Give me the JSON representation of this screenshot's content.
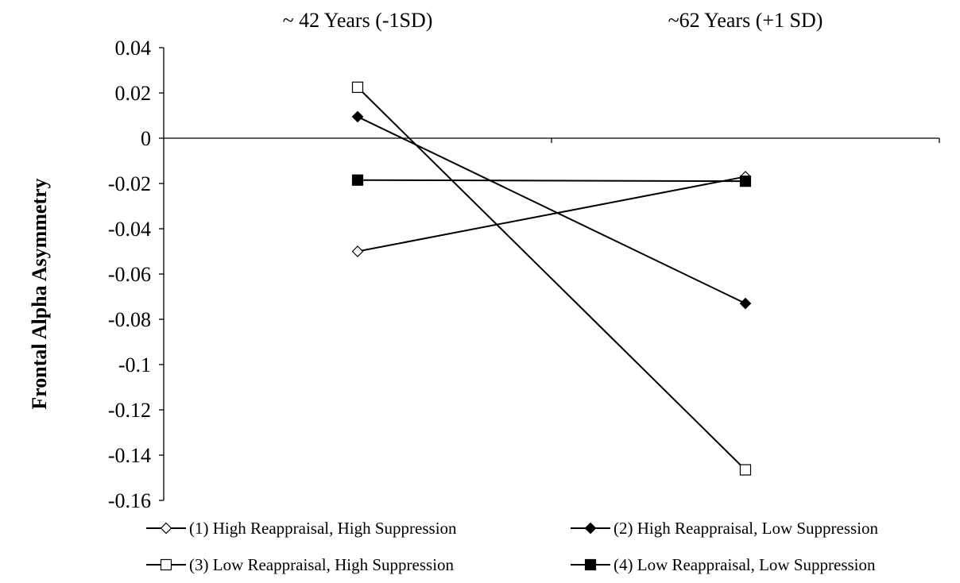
{
  "chart_data": {
    "type": "line",
    "title": "",
    "xlabel": "",
    "ylabel": "Frontal Alpha Asymmetry",
    "categories": [
      "~ 42 Years (-1SD)",
      "~62 Years (+1 SD)"
    ],
    "ylim": [
      -0.16,
      0.04
    ],
    "yticks": [
      0.04,
      0.02,
      0,
      -0.02,
      -0.04,
      -0.06,
      -0.08,
      -0.1,
      -0.12,
      -0.14,
      -0.16
    ],
    "ytick_labels": [
      "0.04",
      "0.02",
      "0",
      "-0.02",
      "-0.04",
      "-0.06",
      "-0.08",
      "-0.1",
      "-0.12",
      "-0.14",
      "-0.16"
    ],
    "grid": false,
    "legend_position": "bottom",
    "series": [
      {
        "name": "(1) High Reappraisal, High Suppression",
        "marker": "diamond-open",
        "color": "#000000",
        "values": [
          -0.05,
          -0.017
        ]
      },
      {
        "name": "(2) High Reappraisal, Low Suppression",
        "marker": "diamond-filled",
        "color": "#000000",
        "values": [
          0.0095,
          -0.073
        ]
      },
      {
        "name": "(3) Low Reappraisal, High Suppression",
        "marker": "square-open",
        "color": "#000000",
        "values": [
          0.0225,
          -0.1465
        ]
      },
      {
        "name": "(4) Low Reappraisal, Low Suppression",
        "marker": "square-filled",
        "color": "#000000",
        "values": [
          -0.0185,
          -0.019
        ]
      }
    ]
  }
}
